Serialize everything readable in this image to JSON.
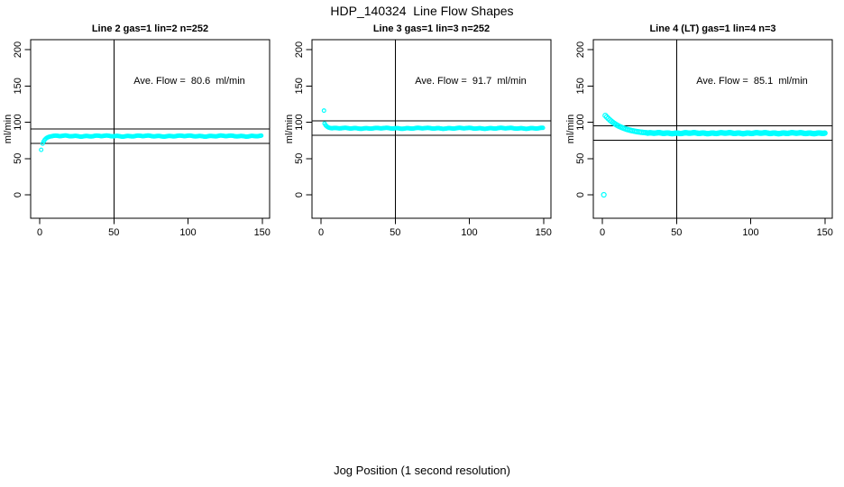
{
  "figure": {
    "title": "HDP_140324  Line Flow Shapes",
    "xlabel": "Jog Position (1 second resolution)"
  },
  "colors": {
    "points": "#00ffff",
    "axis": "#000000",
    "background": "#ffffff"
  },
  "chart_data": [
    {
      "type": "scatter",
      "title": "Line 2 gas=1 lin=2 n=252",
      "annotation": "Ave. Flow =  80.6  ml/min",
      "ave_flow_ml_min": 80.6,
      "n": 252,
      "ylabel": "ml/min",
      "xticks": [
        0,
        50,
        100,
        150
      ],
      "yticks": [
        0,
        50,
        100,
        150,
        200
      ],
      "xlim": [
        0,
        150
      ],
      "ylim": [
        0,
        200
      ],
      "vline_x": 50,
      "hlines": [
        90.6,
        70.6
      ],
      "marker_r": 1.9,
      "outliers": [],
      "head_points": [
        [
          1,
          62
        ],
        [
          2,
          70.5
        ],
        [
          2.7,
          73.5
        ],
        [
          3.4,
          75.7
        ],
        [
          4.1,
          77.3
        ],
        [
          4.8,
          78.4
        ],
        [
          5.5,
          79.2
        ],
        [
          6.3,
          79.8
        ],
        [
          7.1,
          80.3
        ],
        [
          8,
          80.6
        ]
      ],
      "flat": {
        "x_from": 8.7,
        "x_to": 150,
        "step": 0.7,
        "y": 80.9,
        "jitter": 0.8
      }
    },
    {
      "type": "scatter",
      "title": "Line 3 gas=1 lin=3 n=252",
      "annotation": "Ave. Flow =  91.7  ml/min",
      "ave_flow_ml_min": 91.7,
      "n": 252,
      "ylabel": "ml/min",
      "xticks": [
        0,
        50,
        100,
        150
      ],
      "yticks": [
        0,
        50,
        100,
        150,
        200
      ],
      "xlim": [
        0,
        150
      ],
      "ylim": [
        0,
        200
      ],
      "vline_x": 50,
      "hlines": [
        101.7,
        81.7
      ],
      "marker_r": 1.9,
      "outliers": [
        [
          2,
          116
        ]
      ],
      "head_points": [
        [
          2.4,
          98.2
        ],
        [
          3.1,
          95.9
        ],
        [
          3.8,
          94.4
        ],
        [
          4.5,
          93.3
        ],
        [
          5.2,
          92.6
        ],
        [
          6,
          92.1
        ],
        [
          6.8,
          91.8
        ]
      ],
      "flat": {
        "x_from": 7.5,
        "x_to": 150,
        "step": 0.7,
        "y": 91.6,
        "jitter": 0.7
      }
    },
    {
      "type": "scatter",
      "title": "Line 4 (LT) gas=1 lin=4 n=3",
      "annotation": "Ave. Flow =  85.1  ml/min",
      "ave_flow_ml_min": 85.1,
      "n": 3,
      "ylabel": "ml/min",
      "xticks": [
        0,
        50,
        100,
        150
      ],
      "yticks": [
        0,
        50,
        100,
        150,
        200
      ],
      "xlim": [
        0,
        150
      ],
      "ylim": [
        0,
        200
      ],
      "vline_x": 50,
      "hlines": [
        95.1,
        75.1
      ],
      "marker_r": 2.5,
      "outliers": [
        [
          1,
          0
        ]
      ],
      "head_points": [
        [
          2,
          109.2
        ],
        [
          3,
          107
        ],
        [
          4,
          105
        ],
        [
          5,
          103.1
        ],
        [
          6,
          101.4
        ],
        [
          7,
          99.8
        ],
        [
          8,
          98.3
        ],
        [
          9,
          97
        ],
        [
          10,
          95.8
        ],
        [
          11,
          94.7
        ],
        [
          12,
          93.7
        ],
        [
          13,
          92.8
        ],
        [
          14,
          92
        ],
        [
          15,
          91.2
        ],
        [
          16,
          90.5
        ],
        [
          17,
          89.9
        ],
        [
          18,
          89.3
        ],
        [
          19,
          88.8
        ],
        [
          20,
          88.3
        ],
        [
          21,
          87.9
        ],
        [
          22,
          87.5
        ],
        [
          23,
          87.1
        ],
        [
          24,
          86.8
        ],
        [
          25,
          86.5
        ],
        [
          26,
          86.2
        ],
        [
          27,
          86
        ],
        [
          28,
          85.8
        ],
        [
          29,
          85.6
        ],
        [
          30,
          85.4
        ]
      ],
      "flat": {
        "x_from": 30.6,
        "x_to": 150,
        "step": 0.6,
        "y": 84.9,
        "jitter": 0.7
      }
    }
  ]
}
